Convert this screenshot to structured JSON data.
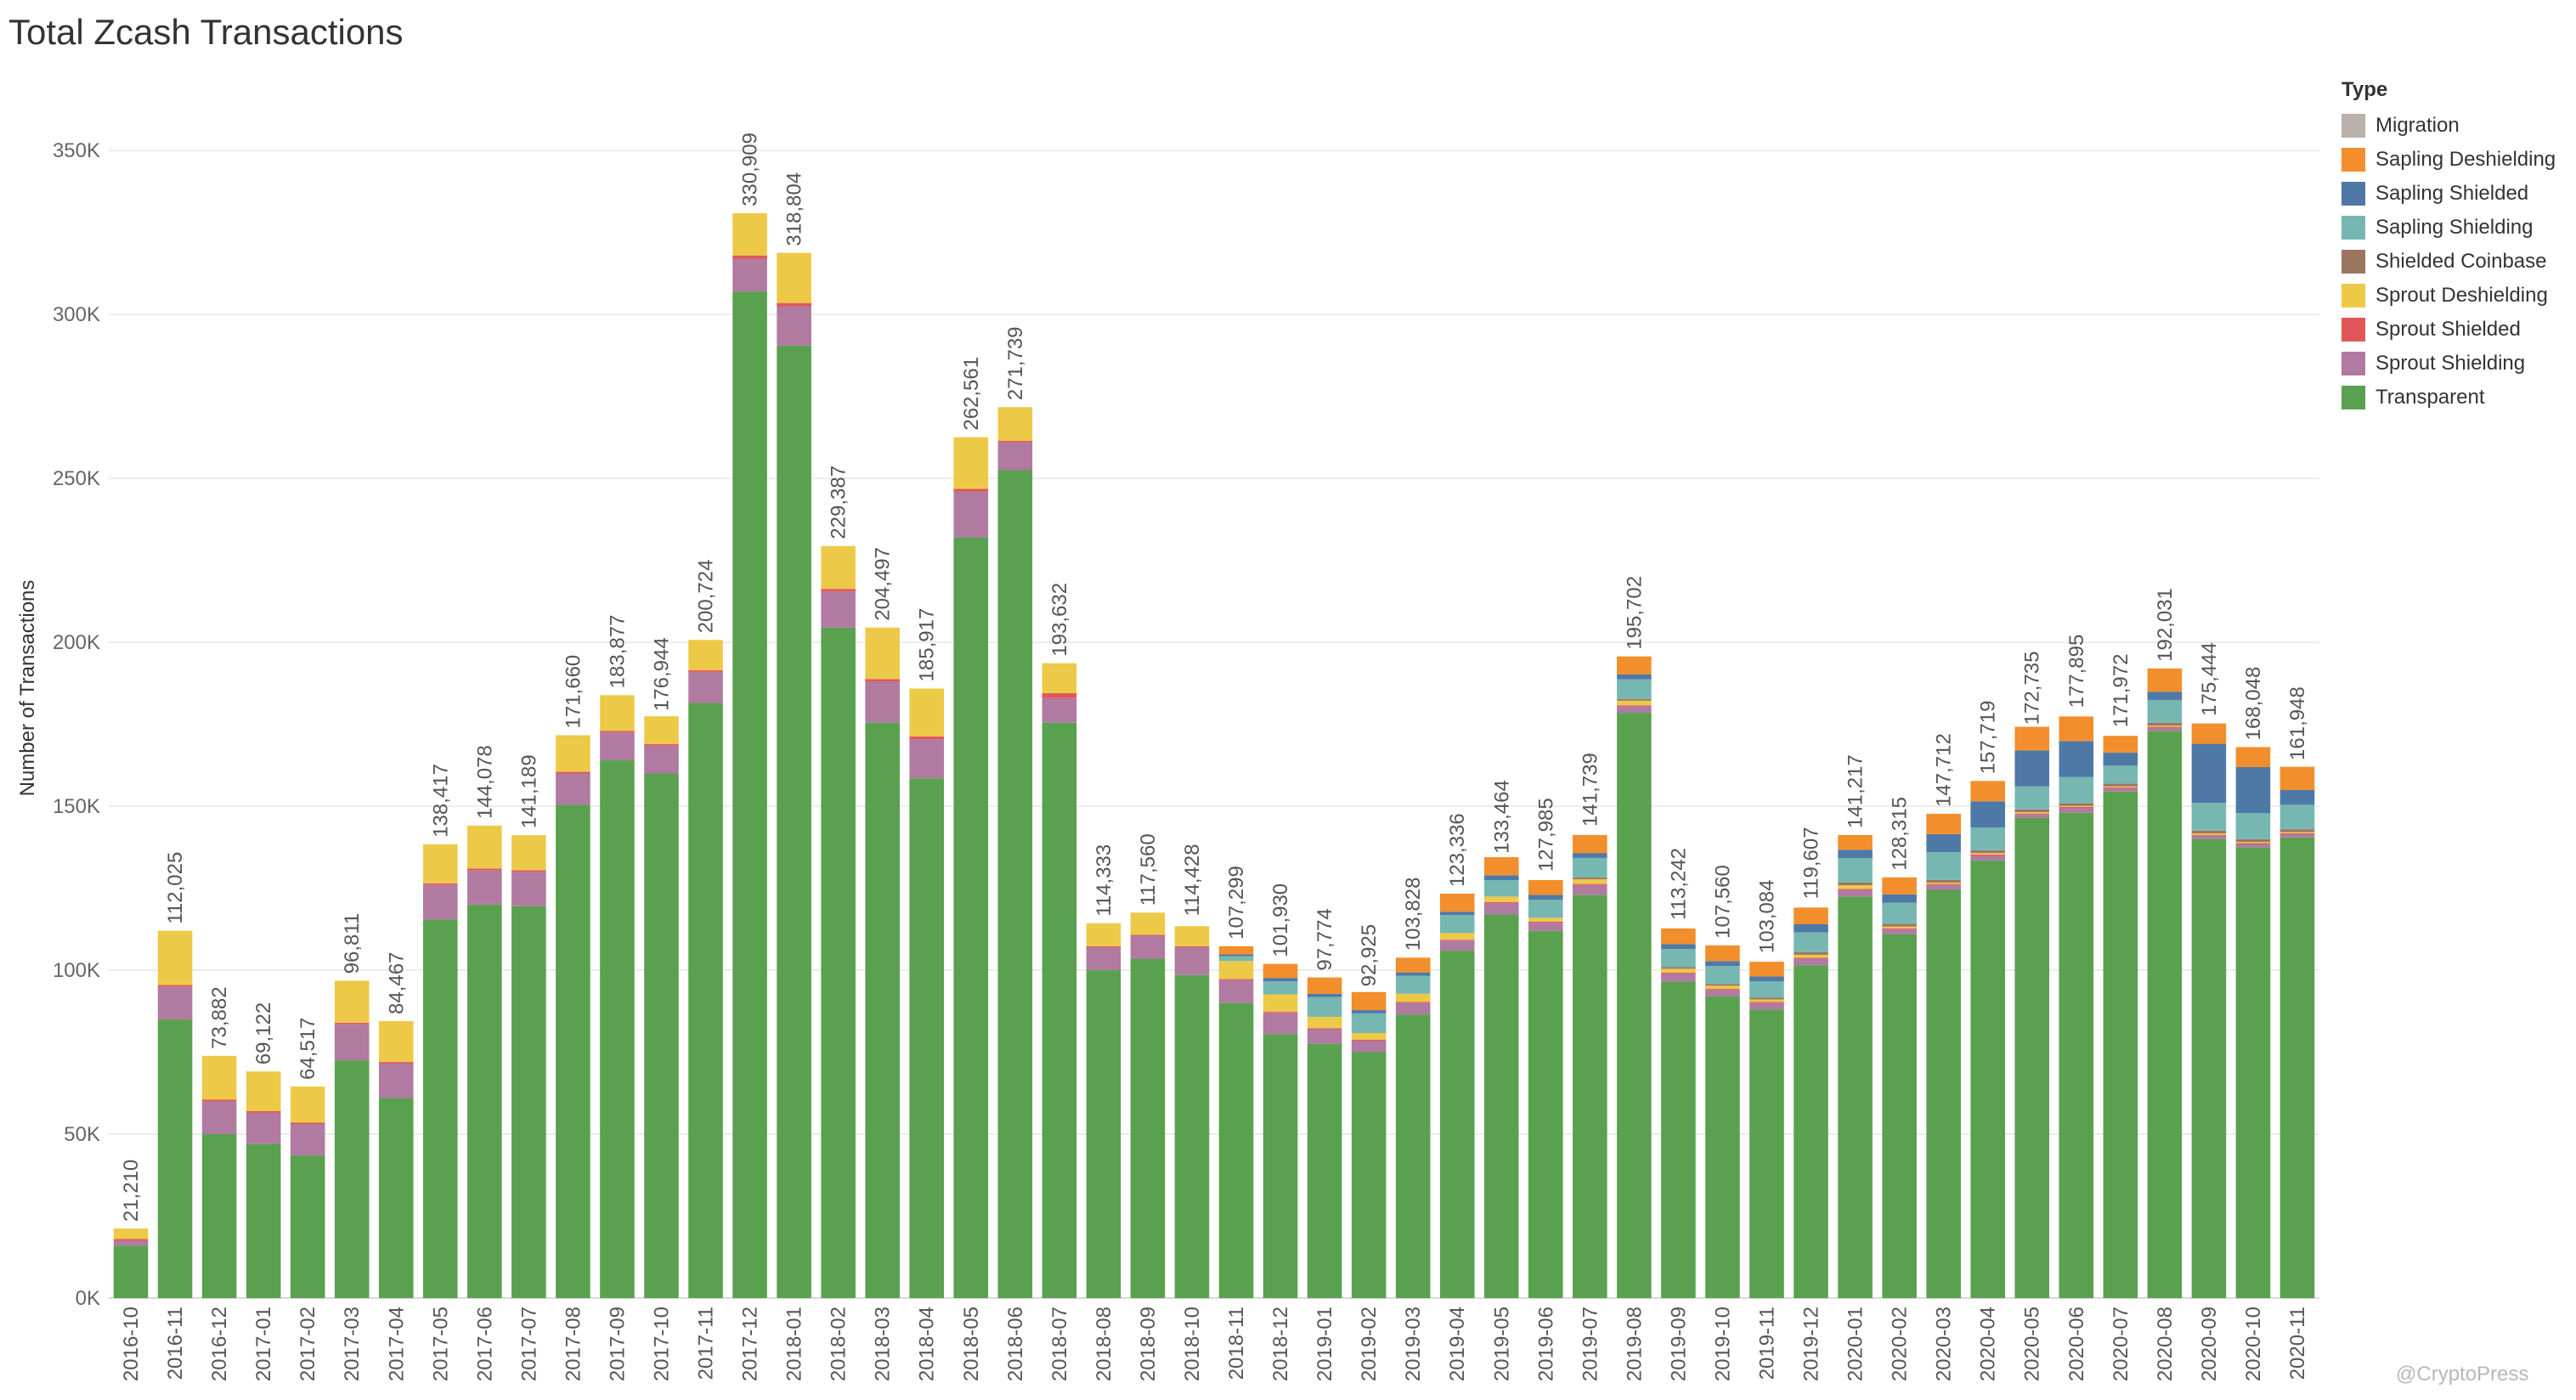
{
  "chart_data": {
    "type": "bar",
    "stacked": true,
    "title": "Total Zcash Transactions",
    "xlabel": "",
    "ylabel": "Number of Transactions",
    "ylim": [
      0,
      370000
    ],
    "yticks": [
      0,
      50000,
      100000,
      150000,
      200000,
      250000,
      300000,
      350000
    ],
    "ytick_labels": [
      "0K",
      "50K",
      "100K",
      "150K",
      "200K",
      "250K",
      "300K",
      "350K"
    ],
    "grid": true,
    "legend_title": "Type",
    "legend_position": "right",
    "categories": [
      "2016-10",
      "2016-11",
      "2016-12",
      "2017-01",
      "2017-02",
      "2017-03",
      "2017-04",
      "2017-05",
      "2017-06",
      "2017-07",
      "2017-08",
      "2017-09",
      "2017-10",
      "2017-11",
      "2017-12",
      "2018-01",
      "2018-02",
      "2018-03",
      "2018-04",
      "2018-05",
      "2018-06",
      "2018-07",
      "2018-08",
      "2018-09",
      "2018-10",
      "2018-11",
      "2018-12",
      "2019-01",
      "2019-02",
      "2019-03",
      "2019-04",
      "2019-05",
      "2019-06",
      "2019-07",
      "2019-08",
      "2019-09",
      "2019-10",
      "2019-11",
      "2019-12",
      "2020-01",
      "2020-02",
      "2020-03",
      "2020-04",
      "2020-05",
      "2020-06",
      "2020-07",
      "2020-08",
      "2020-09",
      "2020-10",
      "2020-11"
    ],
    "totals": [
      21210,
      112025,
      73882,
      69122,
      64517,
      96811,
      84467,
      138417,
      144078,
      141189,
      171660,
      183877,
      176944,
      200724,
      330909,
      318804,
      229387,
      204497,
      185917,
      262561,
      271739,
      193632,
      114333,
      117560,
      114428,
      107299,
      101930,
      97774,
      92925,
      103828,
      123336,
      133464,
      127985,
      141739,
      195702,
      113242,
      107560,
      103084,
      119607,
      141217,
      128315,
      147712,
      157719,
      172735,
      177895,
      171972,
      192031,
      175444,
      168048,
      161948
    ],
    "total_labels": [
      "21,210",
      "112,025",
      "73,882",
      "69,122",
      "64,517",
      "96,811",
      "84,467",
      "138,417",
      "144,078",
      "141,189",
      "171,660",
      "183,877",
      "176,944",
      "200,724",
      "330,909",
      "318,804",
      "229,387",
      "204,497",
      "185,917",
      "262,561",
      "271,739",
      "193,632",
      "114,333",
      "117,560",
      "114,428",
      "107,299",
      "101,930",
      "97,774",
      "92,925",
      "103,828",
      "123,336",
      "133,464",
      "127,985",
      "141,739",
      "195,702",
      "113,242",
      "107,560",
      "103,084",
      "119,607",
      "141,217",
      "128,315",
      "147,712",
      "157,719",
      "172,735",
      "177,895",
      "171,972",
      "192,031",
      "175,444",
      "168,048",
      "161,948"
    ],
    "series": [
      {
        "name": "Transparent",
        "color": "#59a14f",
        "values": [
          16000,
          85000,
          50000,
          47000,
          43500,
          72500,
          61000,
          115500,
          120000,
          119500,
          150500,
          164000,
          160000,
          181500,
          307000,
          290500,
          204500,
          175500,
          158500,
          232000,
          252500,
          175500,
          100000,
          103500,
          98500,
          90000,
          80500,
          77500,
          75000,
          86500,
          106000,
          117000,
          112000,
          123000,
          178500,
          96500,
          92000,
          88000,
          101500,
          122500,
          111000,
          124500,
          133500,
          146500,
          148000,
          154500,
          173000,
          140000,
          137500,
          140500
        ]
      },
      {
        "name": "Sprout Shielding",
        "color": "#b07aa1",
        "values": [
          1500,
          10000,
          10000,
          9500,
          9500,
          11000,
          10500,
          10500,
          10500,
          10500,
          9500,
          8500,
          8500,
          9500,
          10000,
          12000,
          11000,
          12500,
          12000,
          14000,
          8500,
          7500,
          7000,
          7000,
          8500,
          7000,
          6500,
          4500,
          3500,
          3500,
          3000,
          3500,
          2500,
          3000,
          2000,
          2500,
          2000,
          2000,
          2000,
          2000,
          1500,
          1500,
          1500,
          1000,
          1500,
          1000,
          1000,
          1000,
          1000,
          1000
        ]
      },
      {
        "name": "Sprout Shielded",
        "color": "#e15759",
        "values": [
          500,
          500,
          500,
          500,
          500,
          500,
          500,
          500,
          500,
          500,
          500,
          500,
          500,
          500,
          1000,
          1000,
          800,
          800,
          800,
          800,
          500,
          1500,
          300,
          300,
          300,
          300,
          300,
          300,
          300,
          300,
          300,
          300,
          300,
          300,
          300,
          300,
          300,
          300,
          300,
          300,
          300,
          300,
          300,
          300,
          300,
          300,
          300,
          300,
          300,
          300
        ]
      },
      {
        "name": "Sprout Deshielding",
        "color": "#edc948",
        "values": [
          3210,
          16525,
          13382,
          12122,
          11017,
          12811,
          12467,
          11917,
          13078,
          10689,
          11160,
          10877,
          8444,
          9224,
          12909,
          15304,
          13087,
          15697,
          14617,
          15761,
          10239,
          9132,
          7033,
          6760,
          6128,
          5499,
          5330,
          3474,
          2025,
          2528,
          2036,
          1664,
          1185,
          1439,
          1402,
          1142,
          960,
          784,
          907,
          1117,
          515,
          412,
          419,
          435,
          295,
          272,
          331,
          444,
          348,
          348
        ]
      },
      {
        "name": "Shielded Coinbase",
        "color": "#9c755f",
        "values": [
          0,
          0,
          0,
          0,
          0,
          0,
          0,
          0,
          0,
          0,
          0,
          0,
          0,
          0,
          0,
          0,
          0,
          0,
          0,
          0,
          0,
          0,
          0,
          0,
          0,
          0,
          0,
          0,
          0,
          0,
          0,
          0,
          0,
          500,
          500,
          500,
          500,
          500,
          800,
          800,
          800,
          800,
          800,
          800,
          800,
          800,
          800,
          800,
          800,
          800
        ]
      },
      {
        "name": "Sapling Shielding",
        "color": "#76b7b2",
        "values": [
          0,
          0,
          0,
          0,
          0,
          0,
          0,
          0,
          0,
          0,
          0,
          0,
          0,
          0,
          0,
          0,
          0,
          0,
          0,
          0,
          0,
          0,
          0,
          0,
          0,
          1500,
          4000,
          6000,
          6000,
          5500,
          5500,
          5000,
          5500,
          6000,
          6000,
          5500,
          5500,
          5000,
          6000,
          7500,
          6500,
          8500,
          7000,
          7000,
          8000,
          5500,
          7000,
          8500,
          8000,
          7500
        ]
      },
      {
        "name": "Sapling Shielded",
        "color": "#4e79a7",
        "values": [
          0,
          0,
          0,
          0,
          0,
          0,
          0,
          0,
          0,
          0,
          0,
          0,
          0,
          0,
          0,
          0,
          0,
          0,
          0,
          0,
          0,
          0,
          0,
          0,
          0,
          500,
          1000,
          1000,
          1000,
          1000,
          1000,
          1500,
          1500,
          1500,
          1500,
          1500,
          1500,
          1500,
          2500,
          2500,
          2500,
          5500,
          8000,
          11000,
          11000,
          4000,
          2500,
          18000,
          14000,
          4500
        ]
      },
      {
        "name": "Sapling Deshielding",
        "color": "#f28e2b",
        "values": [
          0,
          0,
          0,
          0,
          0,
          0,
          0,
          0,
          0,
          0,
          0,
          0,
          0,
          0,
          0,
          0,
          0,
          0,
          0,
          0,
          0,
          0,
          0,
          0,
          0,
          2500,
          4300,
          5000,
          5500,
          4500,
          5500,
          5500,
          4500,
          5500,
          5500,
          4800,
          4800,
          4500,
          5100,
          4500,
          5200,
          6200,
          6200,
          7200,
          7500,
          5100,
          7100,
          6200,
          6100,
          7100
        ]
      },
      {
        "name": "Migration",
        "color": "#bab0ac",
        "values": [
          0,
          0,
          0,
          0,
          0,
          0,
          0,
          0,
          0,
          0,
          0,
          0,
          0,
          0,
          0,
          0,
          0,
          0,
          0,
          0,
          0,
          0,
          0,
          0,
          0,
          0,
          0,
          0,
          0,
          0,
          0,
          0,
          0,
          0,
          0,
          0,
          0,
          0,
          0,
          0,
          0,
          0,
          0,
          0,
          0,
          0,
          0,
          0,
          0,
          0
        ]
      }
    ],
    "legend_order": [
      "Migration",
      "Sapling Deshielding",
      "Sapling Shielded",
      "Sapling Shielding",
      "Shielded Coinbase",
      "Sprout Deshielding",
      "Sprout Shielded",
      "Sprout Shielding",
      "Transparent"
    ],
    "watermark": "@CryptoPress"
  }
}
